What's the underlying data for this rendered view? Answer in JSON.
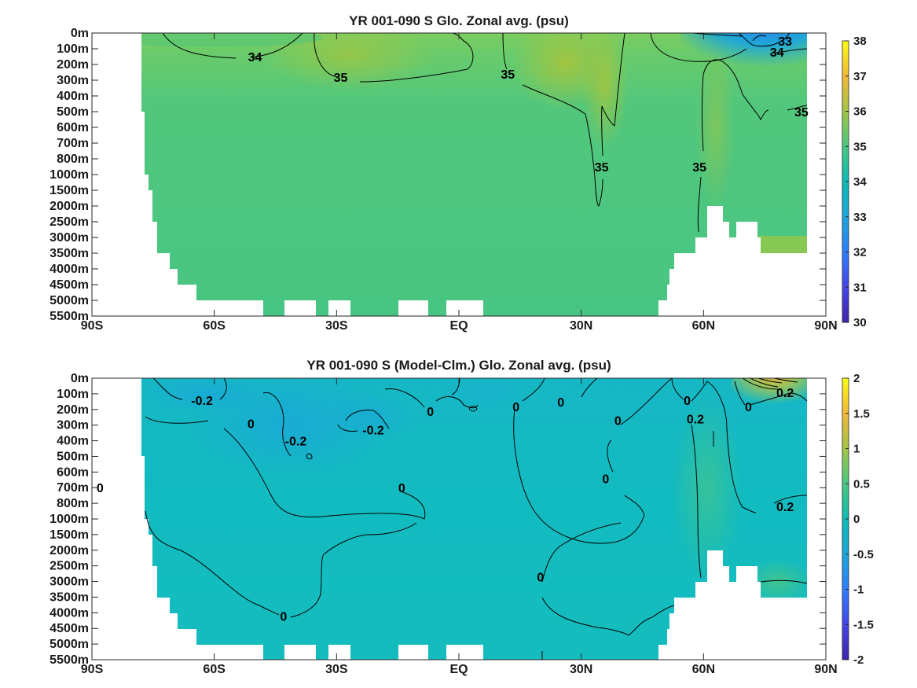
{
  "chart_data": [
    {
      "type": "heatmap",
      "title": "YR 001-090 S Glo. Zonal avg. (psu)",
      "x_ticks": [
        "90S",
        "60S",
        "30S",
        "EQ",
        "30N",
        "60N",
        "90N"
      ],
      "y_ticks": [
        "0m",
        "100m",
        "200m",
        "300m",
        "400m",
        "500m",
        "600m",
        "700m",
        "800m",
        "1000m",
        "1500m",
        "2000m",
        "2500m",
        "3000m",
        "3500m",
        "4000m",
        "4500m",
        "5000m",
        "5500m"
      ],
      "colorbar": {
        "min": 30,
        "max": 38,
        "ticks": [
          "30",
          "31",
          "32",
          "33",
          "34",
          "35",
          "36",
          "37",
          "38"
        ]
      },
      "contour_labels": [
        {
          "text": "34",
          "lat": -50,
          "depth_level": 1.5
        },
        {
          "text": "35",
          "lat": -29,
          "depth_level": 2.8
        },
        {
          "text": "35",
          "lat": 12,
          "depth_level": 2.6
        },
        {
          "text": "35",
          "lat": 35,
          "depth_level": 8.5
        },
        {
          "text": "35",
          "lat": 59,
          "depth_level": 8.5
        },
        {
          "text": "33",
          "lat": 80,
          "depth_level": 0.5
        },
        {
          "text": "34",
          "lat": 78,
          "depth_level": 1.2
        },
        {
          "text": "35",
          "lat": 84,
          "depth_level": 5
        }
      ]
    },
    {
      "type": "heatmap",
      "title": "YR 001-090 S (Model-Clm.) Glo. Zonal avg. (psu)",
      "x_ticks": [
        "90S",
        "60S",
        "30S",
        "EQ",
        "30N",
        "60N",
        "90N"
      ],
      "y_ticks": [
        "0m",
        "100m",
        "200m",
        "300m",
        "400m",
        "500m",
        "600m",
        "700m",
        "800m",
        "1000m",
        "1500m",
        "2000m",
        "2500m",
        "3000m",
        "3500m",
        "4000m",
        "4500m",
        "5000m",
        "5500m"
      ],
      "colorbar": {
        "min": -2,
        "max": 2,
        "ticks": [
          "-2",
          "-1.5",
          "-1",
          "-0.5",
          "0",
          "0.5",
          "1",
          "1.5",
          "2"
        ]
      },
      "contour_labels": [
        {
          "text": "-0.2",
          "lat": -63,
          "depth_level": 1.4
        },
        {
          "text": "0",
          "lat": -51,
          "depth_level": 2.9
        },
        {
          "text": "-0.2",
          "lat": -40,
          "depth_level": 4
        },
        {
          "text": "-0.2",
          "lat": -21,
          "depth_level": 3.3
        },
        {
          "text": "0",
          "lat": -7,
          "depth_level": 2.1
        },
        {
          "text": "0",
          "lat": 14,
          "depth_level": 1.8
        },
        {
          "text": "0",
          "lat": 25,
          "depth_level": 1.5
        },
        {
          "text": "0",
          "lat": 39,
          "depth_level": 2.7
        },
        {
          "text": "0",
          "lat": 56,
          "depth_level": 1.4
        },
        {
          "text": "0.2",
          "lat": 58,
          "depth_level": 2.6
        },
        {
          "text": "0",
          "lat": 71,
          "depth_level": 1.8
        },
        {
          "text": "0.2",
          "lat": 80,
          "depth_level": 0.9
        },
        {
          "text": "0.2",
          "lat": 80,
          "depth_level": 8.2
        },
        {
          "text": "0",
          "lat": -88,
          "depth_level": 7
        },
        {
          "text": "0",
          "lat": -14,
          "depth_level": 7
        },
        {
          "text": "0",
          "lat": 36,
          "depth_level": 6.4
        },
        {
          "text": "0",
          "lat": 20,
          "depth_level": 12.7
        },
        {
          "text": "0",
          "lat": -43,
          "depth_level": 15.2
        }
      ]
    }
  ]
}
